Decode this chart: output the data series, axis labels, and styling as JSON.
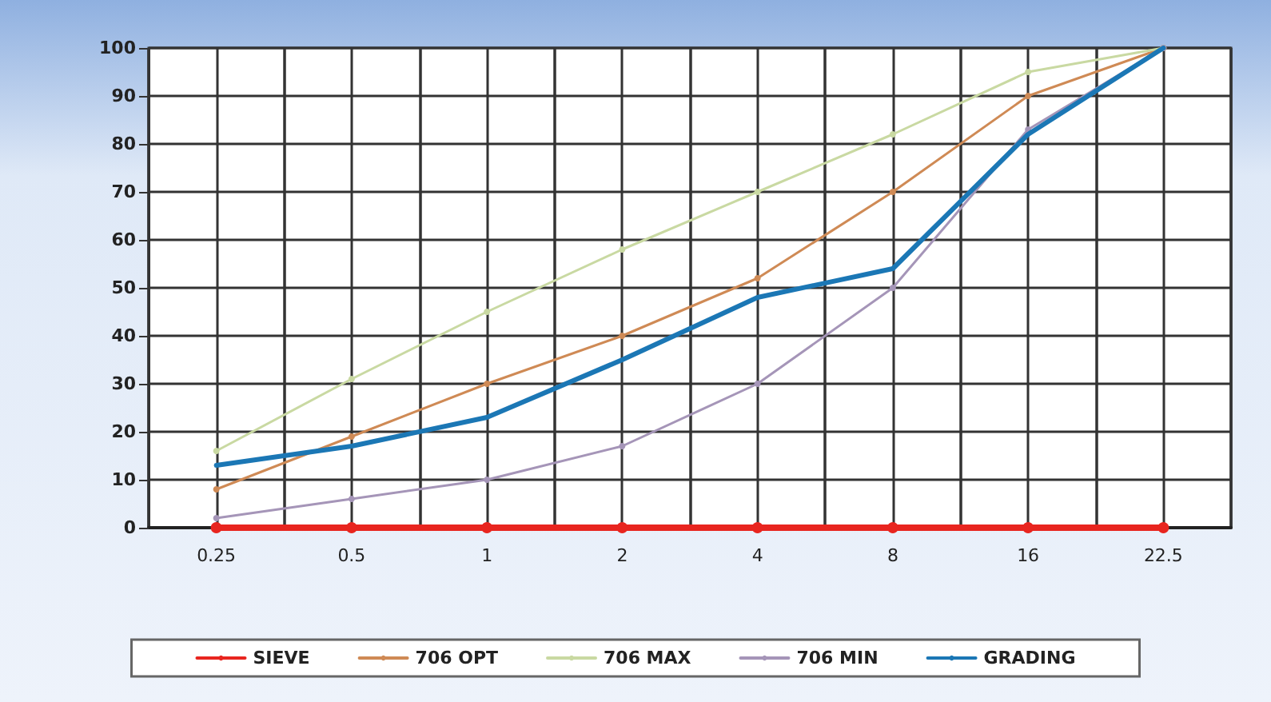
{
  "chart_data": {
    "type": "line",
    "categories": [
      "0.25",
      "0.5",
      "1",
      "2",
      "4",
      "8",
      "16",
      "22.5"
    ],
    "series": [
      {
        "name": "SIEVE",
        "color": "#e8251f",
        "values": [
          0,
          0,
          0,
          0,
          0,
          0,
          0,
          0
        ]
      },
      {
        "name": "706 OPT",
        "color": "#cf8a55",
        "values": [
          8,
          19,
          30,
          40,
          52,
          70,
          90,
          100
        ]
      },
      {
        "name": "706 MAX",
        "color": "#c9d9a2",
        "values": [
          16,
          31,
          45,
          58,
          70,
          82,
          95,
          100
        ]
      },
      {
        "name": "706 MIN",
        "color": "#a595b8",
        "values": [
          2,
          6,
          10,
          17,
          30,
          50,
          83,
          100
        ]
      },
      {
        "name": "GRADING",
        "color": "#1b77b5",
        "marker": "none",
        "values": [
          13,
          17,
          23,
          35,
          48,
          54,
          82,
          100
        ]
      }
    ],
    "ylim": [
      0,
      100
    ],
    "yticks": [
      0,
      10,
      20,
      30,
      40,
      50,
      60,
      70,
      80,
      90,
      100
    ],
    "grid": true,
    "legend": "bottom",
    "marker": "circle",
    "line_style": "solid"
  }
}
